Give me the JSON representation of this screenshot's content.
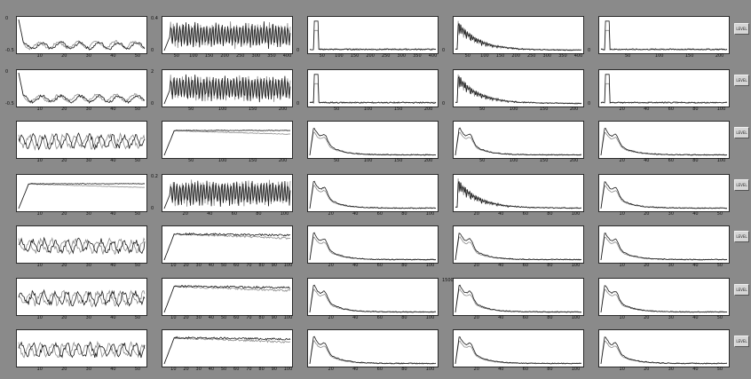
{
  "window": {
    "background": "#8a8a8a",
    "panel_background": "#ffffff"
  },
  "colors": {
    "series_dark": "#1a1a1a",
    "series_light": "#8c8c8c"
  },
  "rows": [
    {
      "side_button": "LEVEL",
      "panels": [
        {
          "type": "flat_noise",
          "ytop": "0",
          "ybot": "-0.5",
          "xticks": [
            "10",
            "20",
            "30",
            "40",
            "50"
          ]
        },
        {
          "type": "dense_oscillation",
          "ytop": "0.4",
          "ybot": "0",
          "xticks": [
            "50",
            "100",
            "150",
            "200",
            "250",
            "300",
            "350",
            "400"
          ]
        },
        {
          "type": "spectrum",
          "ytop": "",
          "ybot": "0",
          "xticks": [
            "50",
            "100",
            "150",
            "200",
            "250",
            "300",
            "350",
            "400"
          ]
        },
        {
          "type": "spectrum_busy",
          "ytop": "",
          "ybot": "0",
          "xticks": [
            "50",
            "100",
            "150",
            "200",
            "250",
            "300",
            "350",
            "400"
          ]
        },
        {
          "type": "spectrum",
          "ytop": "",
          "ybot": "0",
          "xticks": [
            "50",
            "100",
            "150",
            "200"
          ]
        }
      ]
    },
    {
      "side_button": "LEVEL",
      "panels": [
        {
          "type": "flat_noise",
          "ytop": "0",
          "ybot": "-0.5",
          "xticks": [
            "10",
            "20",
            "30",
            "40",
            "50"
          ]
        },
        {
          "type": "dense_oscillation",
          "ytop": "2",
          "ybot": "0",
          "xticks": [
            "50",
            "100",
            "150",
            "200"
          ]
        },
        {
          "type": "spectrum",
          "ytop": "",
          "ybot": "0",
          "xticks": [
            "50",
            "100",
            "150",
            "200"
          ]
        },
        {
          "type": "spectrum_busy",
          "ytop": "",
          "ybot": "0",
          "xticks": [
            "50",
            "100",
            "150",
            "200"
          ]
        },
        {
          "type": "spectrum",
          "ytop": "",
          "ybot": "0",
          "xticks": [
            "20",
            "40",
            "60",
            "80",
            "100"
          ]
        }
      ]
    },
    {
      "side_button": "LEVEL",
      "panels": [
        {
          "type": "noise",
          "ytop": "",
          "ybot": "",
          "xticks": [
            "10",
            "20",
            "30",
            "40",
            "50"
          ]
        },
        {
          "type": "step",
          "ytop": "",
          "ybot": "",
          "xticks": [
            "50",
            "100",
            "150",
            "200"
          ]
        },
        {
          "type": "spectrum_smooth",
          "ytop": "",
          "ybot": "",
          "xticks": [
            "50",
            "100",
            "150",
            "200"
          ]
        },
        {
          "type": "spectrum_smooth",
          "ytop": "",
          "ybot": "",
          "xticks": [
            "50",
            "100",
            "150",
            "200"
          ]
        },
        {
          "type": "spectrum_smooth",
          "ytop": "",
          "ybot": "",
          "xticks": [
            "20",
            "40",
            "60",
            "80",
            "100"
          ]
        }
      ]
    },
    {
      "side_button": "LEVEL",
      "panels": [
        {
          "type": "step",
          "ytop": "",
          "ybot": "",
          "xticks": [
            "10",
            "20",
            "30",
            "40",
            "50"
          ]
        },
        {
          "type": "dense_oscillation",
          "ytop": "0.2",
          "ybot": "0",
          "xticks": [
            "20",
            "40",
            "60",
            "80",
            "100"
          ]
        },
        {
          "type": "spectrum_smooth",
          "ytop": "",
          "ybot": "",
          "xticks": [
            "20",
            "40",
            "60",
            "80",
            "100"
          ]
        },
        {
          "type": "spectrum_busy",
          "ytop": "",
          "ybot": "",
          "xticks": [
            "20",
            "40",
            "60",
            "80",
            "100"
          ]
        },
        {
          "type": "spectrum_smooth",
          "ytop": "",
          "ybot": "",
          "xticks": [
            "10",
            "20",
            "30",
            "40",
            "50"
          ]
        }
      ]
    },
    {
      "side_button": "LEVEL",
      "panels": [
        {
          "type": "noise",
          "ytop": "",
          "ybot": "",
          "xticks": [
            "10",
            "20",
            "30",
            "40",
            "50"
          ]
        },
        {
          "type": "step_noisy",
          "ytop": "",
          "ybot": "",
          "xticks": [
            "10",
            "20",
            "30",
            "40",
            "50",
            "60",
            "70",
            "80",
            "90",
            "100"
          ]
        },
        {
          "type": "spectrum_smooth",
          "ytop": "",
          "ybot": "",
          "xticks": [
            "20",
            "40",
            "60",
            "80",
            "100"
          ]
        },
        {
          "type": "spectrum_smooth",
          "ytop": "",
          "ybot": "",
          "xticks": [
            "20",
            "40",
            "60",
            "80",
            "100"
          ]
        },
        {
          "type": "spectrum_smooth",
          "ytop": "",
          "ybot": "",
          "xticks": [
            "10",
            "20",
            "30",
            "40",
            "50"
          ]
        }
      ]
    },
    {
      "side_button": "LEVEL",
      "panels": [
        {
          "type": "noise",
          "ytop": "",
          "ybot": "",
          "xticks": [
            "10",
            "20",
            "30",
            "40",
            "50"
          ]
        },
        {
          "type": "step_noisy",
          "ytop": "",
          "ybot": "",
          "xticks": [
            "10",
            "20",
            "30",
            "40",
            "50",
            "60",
            "70",
            "80",
            "90",
            "100"
          ]
        },
        {
          "type": "spectrum_smooth",
          "ytop": "",
          "ybot": "",
          "xticks": [
            "20",
            "40",
            "60",
            "80",
            "100"
          ]
        },
        {
          "type": "spectrum_smooth",
          "ytop": "1500",
          "ybot": "",
          "xticks": [
            "20",
            "40",
            "60",
            "80",
            "100"
          ]
        },
        {
          "type": "spectrum_smooth",
          "ytop": "",
          "ybot": "",
          "xticks": [
            "10",
            "20",
            "30",
            "40",
            "50"
          ]
        }
      ]
    },
    {
      "side_button": "LEVEL",
      "panels": [
        {
          "type": "noise",
          "ytop": "",
          "ybot": "",
          "xticks": [
            "10",
            "20",
            "30",
            "40",
            "50"
          ]
        },
        {
          "type": "step_noisy",
          "ytop": "",
          "ybot": "",
          "xticks": [
            "10",
            "20",
            "30",
            "40",
            "50",
            "60",
            "70",
            "80",
            "90",
            "100"
          ]
        },
        {
          "type": "spectrum_smooth",
          "ytop": "",
          "ybot": "",
          "xticks": [
            "20",
            "40",
            "60",
            "80",
            "100"
          ]
        },
        {
          "type": "spectrum_smooth",
          "ytop": "",
          "ybot": "",
          "xticks": [
            "20",
            "40",
            "60",
            "80",
            "100"
          ]
        },
        {
          "type": "spectrum_smooth",
          "ytop": "",
          "ybot": "",
          "xticks": [
            "10",
            "20",
            "30",
            "40",
            "50"
          ]
        }
      ]
    }
  ],
  "chart_data": {
    "type": "line",
    "layout": "grid of 7 rows x 5 columns of small line plots",
    "grid": false,
    "legend": "none",
    "series_per_panel": 2
  }
}
